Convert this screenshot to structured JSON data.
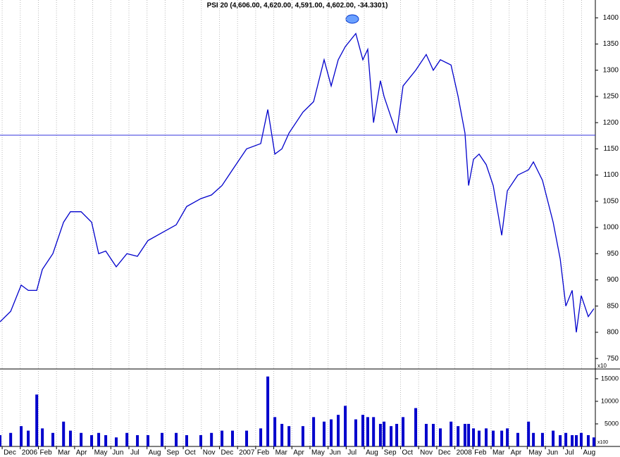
{
  "chart_data": [
    {
      "type": "line",
      "title": "PSI 20 (4,606.00, 4,620.00, 4,591.00, 4,602.00, -34.3301)",
      "axis_note": "x10",
      "color": "#0000cc",
      "x": [
        -0.12,
        0.47,
        1.05,
        1.44,
        1.91,
        2.22,
        2.8,
        3.39,
        3.77,
        4.36,
        4.94,
        5.33,
        5.72,
        6.3,
        6.89,
        7.47,
        8.05,
        8.83,
        9.61,
        10.19,
        10.97,
        11.56,
        12.14,
        12.72,
        13.5,
        14.28,
        14.67,
        15.06,
        15.45,
        15.84,
        16.61,
        17.2,
        17.78,
        18.17,
        18.56,
        18.95,
        19.53,
        19.92,
        20.19,
        20.51,
        20.89,
        21.09,
        21.48,
        21.79,
        22.14,
        22.84,
        23.42,
        23.81,
        24.2,
        24.79,
        25.18,
        25.56,
        25.76,
        26.03,
        26.34,
        26.73,
        27.12,
        27.59,
        27.9,
        28.48,
        29.07,
        29.34,
        29.84,
        30.43,
        30.82,
        31.13,
        31.48,
        31.71,
        31.98,
        32.37,
        32.68
      ],
      "values": [
        820,
        840,
        890,
        880,
        880,
        920,
        950,
        1010,
        1030,
        1030,
        1010,
        950,
        955,
        925,
        950,
        945,
        975,
        990,
        1005,
        1040,
        1055,
        1062,
        1080,
        1110,
        1150,
        1160,
        1225,
        1140,
        1150,
        1180,
        1220,
        1240,
        1320,
        1270,
        1320,
        1345,
        1370,
        1320,
        1340,
        1200,
        1280,
        1250,
        1210,
        1180,
        1270,
        1300,
        1330,
        1300,
        1320,
        1310,
        1250,
        1180,
        1080,
        1130,
        1140,
        1120,
        1080,
        985,
        1070,
        1100,
        1110,
        1125,
        1090,
        1010,
        940,
        850,
        880,
        800,
        870,
        830,
        845
      ],
      "reference_line": 1176,
      "xlim": [
        -0.12,
        32.76
      ],
      "xticks": [
        {
          "value": 0,
          "label": "Dec"
        },
        {
          "value": 1,
          "label": "2006"
        },
        {
          "value": 2,
          "label": "Feb"
        },
        {
          "value": 3,
          "label": "Mar"
        },
        {
          "value": 4,
          "label": "Apr"
        },
        {
          "value": 5,
          "label": "May"
        },
        {
          "value": 6,
          "label": "Jun"
        },
        {
          "value": 7,
          "label": "Jul"
        },
        {
          "value": 8,
          "label": "Aug"
        },
        {
          "value": 9,
          "label": "Sep"
        },
        {
          "value": 10,
          "label": "Oct"
        },
        {
          "value": 11,
          "label": "Nov"
        },
        {
          "value": 12,
          "label": "Dec"
        },
        {
          "value": 13,
          "label": "2007"
        },
        {
          "value": 14,
          "label": "Feb"
        },
        {
          "value": 15,
          "label": "Mar"
        },
        {
          "value": 16,
          "label": "Apr"
        },
        {
          "value": 17,
          "label": "May"
        },
        {
          "value": 18,
          "label": "Jun"
        },
        {
          "value": 19,
          "label": "Jul"
        },
        {
          "value": 20,
          "label": "Aug"
        },
        {
          "value": 21,
          "label": "Sep"
        },
        {
          "value": 22,
          "label": "Oct"
        },
        {
          "value": 23,
          "label": "Nov"
        },
        {
          "value": 24,
          "label": "Dec"
        },
        {
          "value": 25,
          "label": "2008"
        },
        {
          "value": 26,
          "label": "Feb"
        },
        {
          "value": 27,
          "label": "Mar"
        },
        {
          "value": 28,
          "label": "Apr"
        },
        {
          "value": 29,
          "label": "May"
        },
        {
          "value": 30,
          "label": "Jun"
        },
        {
          "value": 31,
          "label": "Jul"
        },
        {
          "value": 32,
          "label": "Aug"
        }
      ],
      "ylim": [
        730,
        1434
      ],
      "yticks": [
        750,
        800,
        850,
        900,
        950,
        1000,
        1050,
        1100,
        1150,
        1200,
        1250,
        1300,
        1350,
        1400
      ],
      "grid": true
    },
    {
      "type": "bar",
      "axis_note": "x100",
      "color": "#0000cc",
      "x": [
        -0.12,
        0.47,
        1.05,
        1.44,
        1.91,
        2.22,
        2.8,
        3.39,
        3.77,
        4.36,
        4.94,
        5.33,
        5.72,
        6.3,
        6.89,
        7.47,
        8.05,
        8.83,
        9.61,
        10.19,
        10.97,
        11.56,
        12.14,
        12.72,
        13.5,
        14.28,
        14.67,
        15.06,
        15.45,
        15.84,
        16.61,
        17.2,
        17.78,
        18.17,
        18.56,
        18.95,
        19.53,
        19.92,
        20.19,
        20.51,
        20.89,
        21.09,
        21.48,
        21.79,
        22.14,
        22.84,
        23.42,
        23.81,
        24.2,
        24.79,
        25.18,
        25.56,
        25.76,
        26.03,
        26.34,
        26.73,
        27.12,
        27.59,
        27.9,
        28.48,
        29.07,
        29.34,
        29.84,
        30.43,
        30.82,
        31.13,
        31.48,
        31.71,
        31.98,
        32.37,
        32.68
      ],
      "values": [
        2500,
        3000,
        4500,
        3500,
        11500,
        4000,
        3000,
        5500,
        3500,
        3000,
        2500,
        3000,
        2500,
        2000,
        3000,
        2500,
        2500,
        3000,
        3000,
        2500,
        2500,
        3000,
        3500,
        3500,
        3500,
        4000,
        15500,
        6500,
        5000,
        4500,
        4500,
        6500,
        5500,
        6000,
        7000,
        9000,
        6000,
        7000,
        6500,
        6500,
        5000,
        5500,
        4500,
        5000,
        6500,
        8500,
        5000,
        5000,
        4000,
        5500,
        4500,
        5000,
        5000,
        4000,
        3500,
        4000,
        3500,
        3500,
        4000,
        3000,
        5500,
        3000,
        3000,
        3500,
        2500,
        3000,
        2500,
        2500,
        3000,
        2500,
        2000
      ],
      "xlim": [
        -0.12,
        32.76
      ],
      "ylim": [
        0,
        16700
      ],
      "yticks": [
        5000,
        10000,
        15000
      ]
    }
  ]
}
